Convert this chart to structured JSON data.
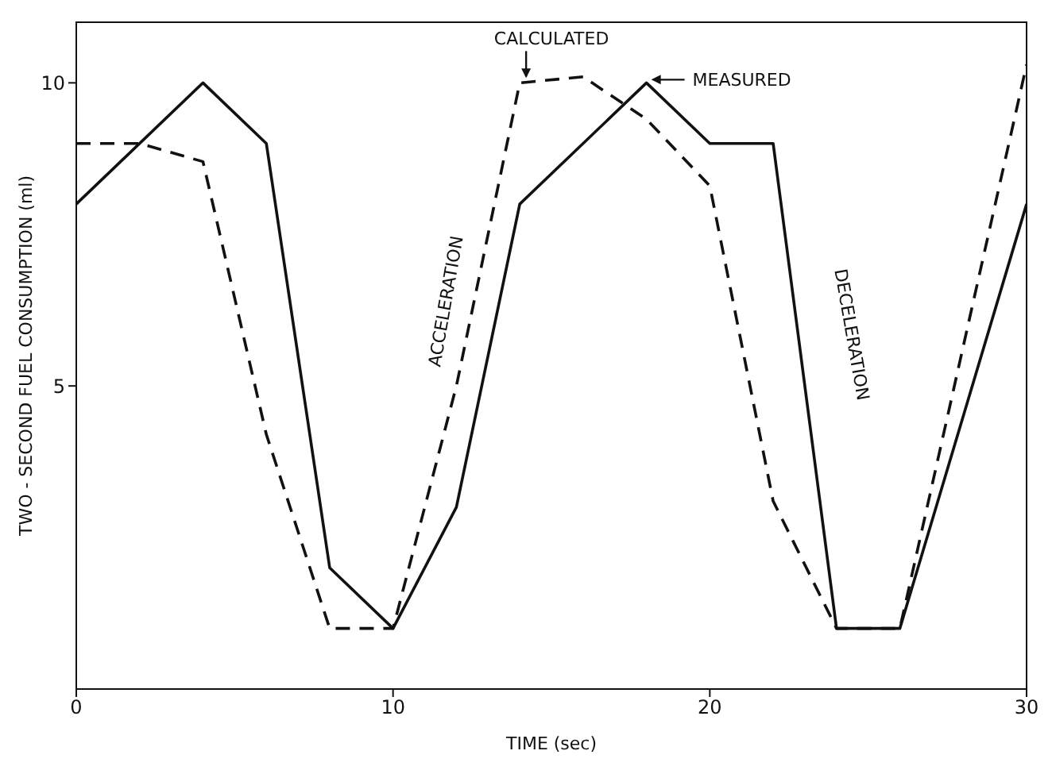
{
  "chart_data": {
    "type": "line",
    "xlabel": "TIME (sec)",
    "ylabel": "TWO - SECOND FUEL CONSUMPTION (ml)",
    "xlim": [
      0,
      30
    ],
    "ylim": [
      0,
      11
    ],
    "xticks": [
      0,
      10,
      20,
      30
    ],
    "yticks": [
      5,
      10
    ],
    "marker": "none",
    "x": [
      0,
      2,
      4,
      6,
      8,
      10,
      12,
      14,
      16,
      18,
      20,
      22,
      24,
      26,
      28,
      30
    ],
    "series": [
      {
        "color": "#111111",
        "line_style": "solid",
        "values": [
          8,
          null,
          10,
          9,
          2,
          1,
          3,
          8,
          null,
          10,
          9,
          9,
          1,
          1,
          null,
          8
        ]
      },
      {
        "color": "#111111",
        "line_style": "dashed",
        "values": [
          9,
          9,
          8.7,
          4.2,
          1,
          1,
          5,
          10,
          10.1,
          9.4,
          8.3,
          3.1,
          1,
          1,
          null,
          10.3
        ]
      }
    ],
    "annotations": [
      {
        "text": "CALCULATED",
        "x": 14,
        "y": 10
      },
      {
        "text": "MEASURED",
        "x": 18,
        "y": 10
      },
      "ACCELERATION",
      "DECELERATION"
    ]
  }
}
